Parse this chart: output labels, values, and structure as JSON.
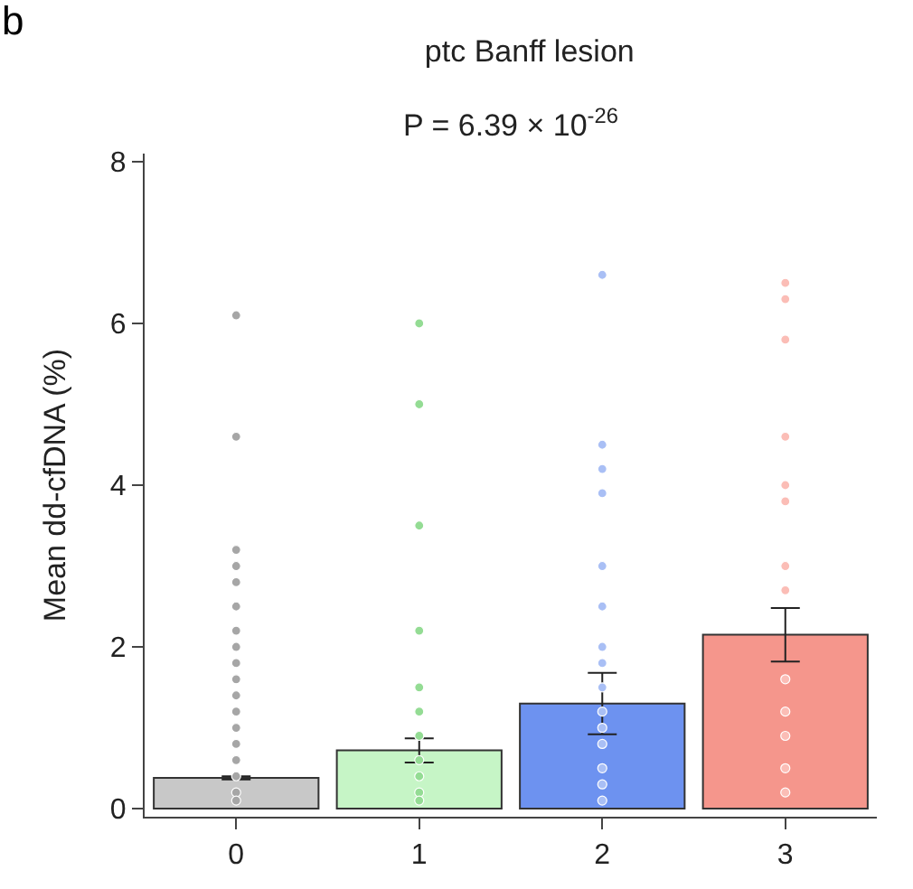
{
  "chart_data": {
    "type": "bar",
    "title": "ptc Banff lesion",
    "subtitle": "P = 6.39 × 10$^{-26}$",
    "ylabel": "Mean dd-cfDNA (%)",
    "annotations": [
      "b"
    ],
    "categories": [
      "0",
      "1",
      "2",
      "3"
    ],
    "ylim": [
      -0.1,
      8.1
    ],
    "yticks": [
      0,
      2,
      4,
      6,
      8
    ],
    "grid": false,
    "marker": "circle",
    "series": [
      {
        "colors": [
          "#c8c8c8",
          "#c6f5c6",
          "#6d92f0",
          "#f5968c"
        ],
        "values": [
          0.38,
          0.72,
          1.3,
          2.15
        ],
        "errors": [
          0.02,
          0.15,
          0.38,
          0.33
        ]
      },
      {
        "type": "scatter",
        "color": "#a6a6a6",
        "x": [
          "0",
          "0",
          "0",
          "0",
          "0",
          "0",
          "0",
          "0",
          "0",
          "0",
          "0",
          "0",
          "0",
          "0",
          "0",
          "0",
          "0",
          "0"
        ],
        "values": [
          6.1,
          4.6,
          3.2,
          3.0,
          2.8,
          2.5,
          2.2,
          2.0,
          1.8,
          1.6,
          1.4,
          1.2,
          1.0,
          0.8,
          0.6,
          0.4,
          0.2,
          0.1
        ]
      },
      {
        "type": "scatter",
        "color": "#94dc94",
        "x": [
          "1",
          "1",
          "1",
          "1",
          "1",
          "1",
          "1",
          "1",
          "1",
          "1",
          "1"
        ],
        "values": [
          6.0,
          5.0,
          3.5,
          2.2,
          1.5,
          1.2,
          0.9,
          0.6,
          0.4,
          0.2,
          0.1
        ]
      },
      {
        "type": "scatter",
        "color": "#a9bff5",
        "x": [
          "2",
          "2",
          "2",
          "2",
          "2",
          "2",
          "2",
          "2",
          "2",
          "2",
          "2",
          "2",
          "2",
          "2",
          "2"
        ],
        "values": [
          6.6,
          4.5,
          4.2,
          3.9,
          3.0,
          2.5,
          2.0,
          1.8,
          1.5,
          1.2,
          1.0,
          0.8,
          0.5,
          0.3,
          0.1
        ]
      },
      {
        "type": "scatter",
        "color": "#fbbdb6",
        "x": [
          "3",
          "3",
          "3",
          "3",
          "3",
          "3",
          "3",
          "3",
          "3",
          "3",
          "3",
          "3",
          "3"
        ],
        "values": [
          6.5,
          6.3,
          5.8,
          4.6,
          4.0,
          3.8,
          3.0,
          2.7,
          1.6,
          1.2,
          0.9,
          0.5,
          0.2
        ]
      }
    ]
  }
}
